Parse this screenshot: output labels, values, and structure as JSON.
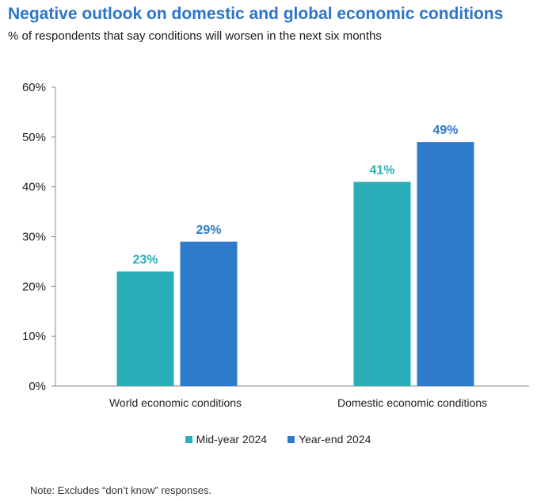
{
  "chart_data": {
    "type": "bar",
    "title": "Negative outlook on domestic and global economic conditions",
    "subtitle": "% of respondents that say conditions will worsen in the next six months",
    "categories": [
      "World economic conditions",
      "Domestic economic conditions"
    ],
    "series": [
      {
        "name": "Mid-year 2024",
        "color": "#2AAFB8",
        "values": [
          23,
          41
        ]
      },
      {
        "name": "Year-end 2024",
        "color": "#2E7BCB",
        "values": [
          29,
          49
        ]
      }
    ],
    "ylim": [
      0,
      60
    ],
    "yticks": [
      "0%",
      "10%",
      "20%",
      "30%",
      "40%",
      "50%",
      "60%"
    ],
    "ytick_values": [
      0,
      10,
      20,
      30,
      40,
      50,
      60
    ],
    "value_suffix": "%",
    "xlabel": "",
    "ylabel": "",
    "grid": false,
    "legend_position": "bottom"
  },
  "note": "Note: Excludes “don’t know” responses."
}
